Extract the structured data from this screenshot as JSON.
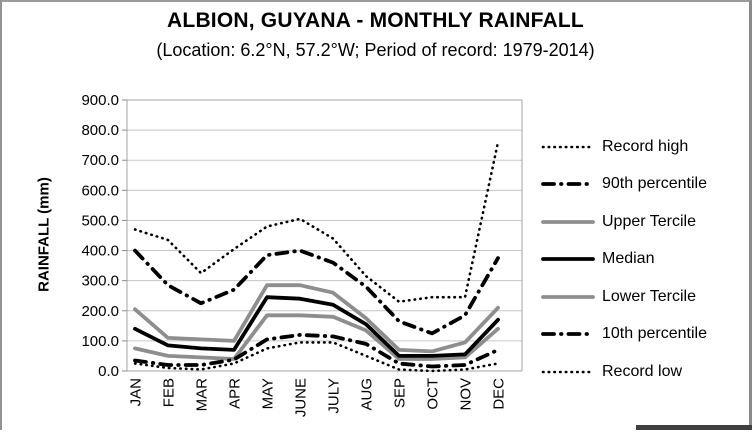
{
  "chart_data": {
    "type": "line",
    "title": "ALBION, GUYANA - MONTHLY RAINFALL",
    "subtitle": "(Location: 6.2°N, 57.2°W; Period of record: 1979-2014)",
    "ylabel": "RAINFALL (mm)",
    "xlabel": "",
    "ylim": [
      0,
      900
    ],
    "ytick_step": 100,
    "ytick_format": "one-decimal",
    "grid": true,
    "legend_position": "right",
    "categories": [
      "JAN",
      "FEB",
      "MAR",
      "APR",
      "MAY",
      "JUNE",
      "JULY",
      "AUG",
      "SEP",
      "OCT",
      "NOV",
      "DEC"
    ],
    "series": [
      {
        "name": "Record high",
        "line_style": "dotted",
        "color": "#000000",
        "width": 2.6,
        "values": [
          470,
          435,
          325,
          405,
          480,
          505,
          440,
          315,
          230,
          245,
          245,
          760
        ]
      },
      {
        "name": "90th percentile",
        "line_style": "dashdot",
        "color": "#000000",
        "width": 3.8,
        "values": [
          400,
          285,
          225,
          270,
          385,
          400,
          360,
          280,
          165,
          125,
          185,
          375
        ]
      },
      {
        "name": "Upper Tercile",
        "line_style": "solid",
        "color": "#8e8e8e",
        "width": 3.8,
        "values": [
          205,
          110,
          105,
          100,
          285,
          285,
          260,
          175,
          70,
          65,
          95,
          210
        ]
      },
      {
        "name": "Median",
        "line_style": "solid",
        "color": "#000000",
        "width": 3.8,
        "values": [
          140,
          85,
          75,
          70,
          245,
          240,
          220,
          155,
          50,
          50,
          55,
          170
        ]
      },
      {
        "name": "Lower Tercile",
        "line_style": "solid",
        "color": "#8e8e8e",
        "width": 3.8,
        "values": [
          75,
          50,
          45,
          40,
          185,
          185,
          180,
          135,
          40,
          40,
          45,
          140
        ]
      },
      {
        "name": "10th percentile",
        "line_style": "dashdot",
        "color": "#000000",
        "width": 3.8,
        "values": [
          35,
          20,
          20,
          38,
          105,
          120,
          115,
          90,
          25,
          15,
          20,
          70
        ]
      },
      {
        "name": "Record low",
        "line_style": "dotted",
        "color": "#000000",
        "width": 2.6,
        "values": [
          25,
          10,
          5,
          25,
          75,
          95,
          95,
          50,
          5,
          0,
          5,
          25
        ]
      }
    ]
  },
  "palette": {
    "series_gray": "#8e8e8e",
    "series_black": "#000000",
    "gridline": "#c6c6c6",
    "axis_border": "#a6a6a6",
    "tick": "#8c8c8c",
    "frame_border": "#919191",
    "bottom_bar": "#3f3f3f",
    "background": "#ffffff"
  }
}
